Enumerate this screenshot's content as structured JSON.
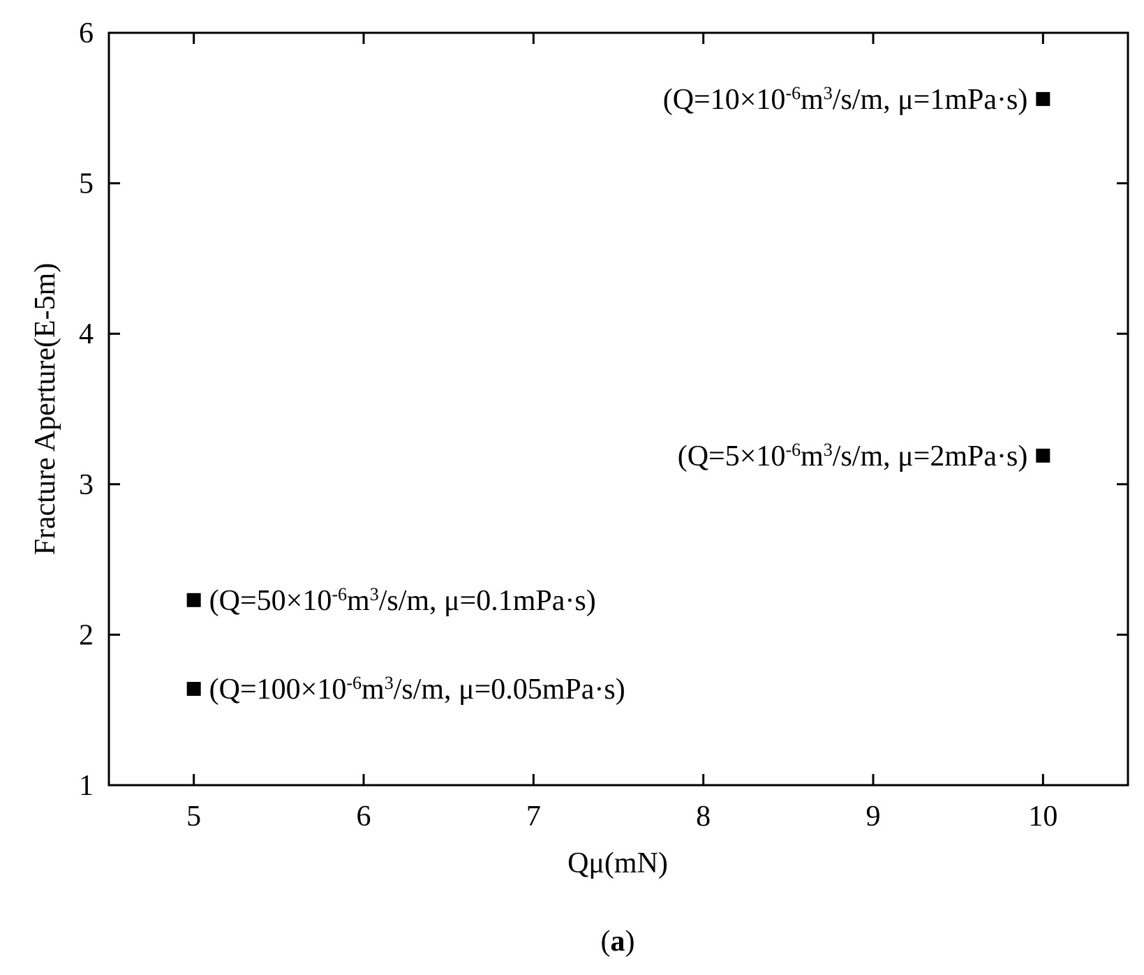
{
  "chart_data": {
    "type": "scatter",
    "x_label": "Qμ(mN)",
    "y_label": "Fracture Aperture(E-5m)",
    "caption": [
      "(",
      "a",
      ")"
    ],
    "x": [
      10,
      10,
      5,
      5
    ],
    "values": [
      5.56,
      3.19,
      2.23,
      1.64
    ],
    "point_labels": [
      [
        "(Q=10×10",
        "-6",
        "m",
        "3",
        "/s/m, μ=1mPa·s)"
      ],
      [
        "(Q=5×10",
        "-6",
        "m",
        "3",
        "/s/m, μ=2mPa·s)"
      ],
      [
        "(Q=50×10",
        "-6",
        "m",
        "3",
        "/s/m, μ=0.1mPa·s)"
      ],
      [
        "(Q=100×10",
        "-6",
        "m",
        "3",
        "/s/m, μ=0.05mPa·s)"
      ]
    ],
    "color": "#000000",
    "xlim": [
      4.5,
      10.5
    ],
    "xticks": [
      5,
      6,
      7,
      8,
      9,
      10
    ],
    "ylim": [
      1,
      6
    ],
    "yticks": [
      1,
      2,
      3,
      4,
      5,
      6
    ],
    "grid": false
  }
}
